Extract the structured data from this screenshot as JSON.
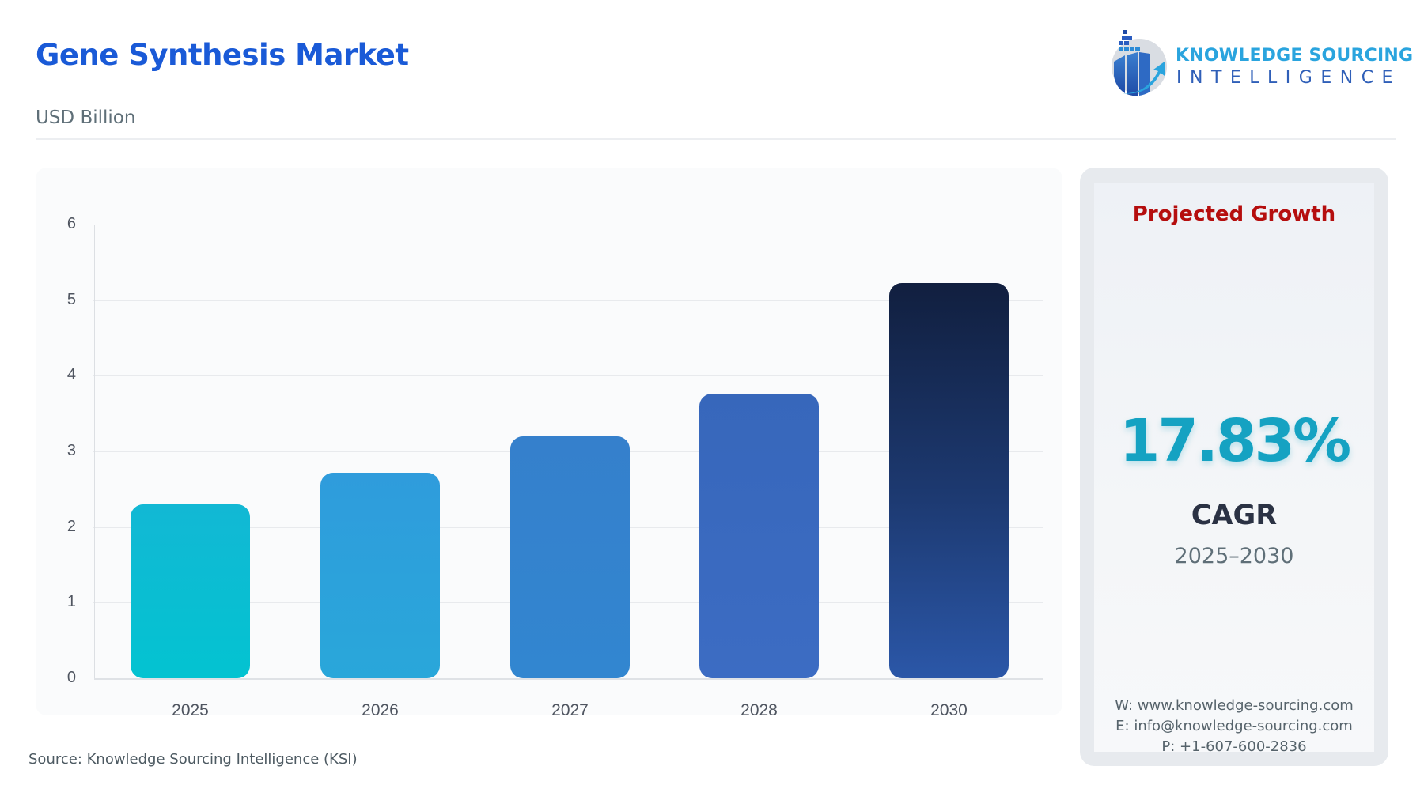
{
  "header": {
    "title": "Gene Synthesis Market",
    "subtitle": "USD Billion"
  },
  "logo": {
    "line1": "KNOWLEDGE SOURCING",
    "line2": "INTELLIGENCE",
    "icon": "bar-chart-growth-arrow-icon"
  },
  "chart_data": {
    "type": "bar",
    "title": "Gene Synthesis Market",
    "subtitle": "USD Billion",
    "xlabel": "",
    "ylabel": "USD Billion",
    "categories": [
      "2025",
      "2026",
      "2027",
      "2028",
      "2030"
    ],
    "values": [
      2.3,
      2.72,
      3.2,
      3.76,
      5.23
    ],
    "ylim": [
      0,
      6
    ],
    "yticks": [
      "0",
      "1",
      "2",
      "3",
      "4",
      "5",
      "6"
    ],
    "grid": true,
    "legend": "none",
    "bar_colors": [
      "#05c2d2",
      "#2d9fdb",
      "#357ecb",
      "#3a69bf",
      "#1a2d55"
    ]
  },
  "source": "Source: Knowledge Sourcing Intelligence (KSI)",
  "growth": {
    "heading": "Projected Growth",
    "value": "17.83%",
    "label": "CAGR",
    "period": "2025–2030",
    "colors": {
      "heading": "#b50e0e",
      "value": "#15a2c2"
    }
  },
  "contact": {
    "website": "W: www.knowledge-sourcing.com",
    "email": "E: info@knowledge-sourcing.com",
    "phone": "P: +1-607-600-2836"
  }
}
